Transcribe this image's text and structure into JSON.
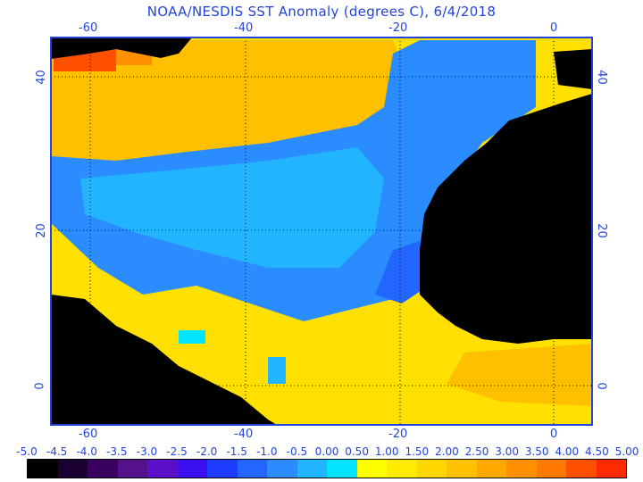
{
  "title": "NOAA/NESDIS SST Anomaly (degrees C), 6/4/2018",
  "map": {
    "lon_range": [
      -65,
      5
    ],
    "lat_range": [
      -5,
      46
    ],
    "lon_ticks": [
      "-60",
      "-40",
      "-20",
      "0"
    ],
    "lat_ticks": [
      "40",
      "20",
      "0"
    ],
    "grid": true,
    "land_color": "#000000",
    "grid_color": "#000000"
  },
  "colorbar": {
    "labels": [
      "-5.0",
      "-4.5",
      "-4.0",
      "-3.5",
      "-3.0",
      "-2.5",
      "-2.0",
      "-1.5",
      "-1.0",
      "-0.5",
      "0.00",
      "0.50",
      "1.00",
      "1.50",
      "2.00",
      "2.50",
      "3.00",
      "3.50",
      "4.00",
      "4.50",
      "5.00"
    ],
    "colors": [
      "#000000",
      "#1a0033",
      "#3a0060",
      "#55108c",
      "#5a10c8",
      "#3a10f0",
      "#1e3cff",
      "#2266ff",
      "#2b8cff",
      "#22b4ff",
      "#00e4ff",
      "#ffff00",
      "#ffec00",
      "#ffd600",
      "#ffc000",
      "#ffa800",
      "#ff9000",
      "#ff7800",
      "#ff5000",
      "#ff2a00",
      "#ff0000"
    ]
  }
}
